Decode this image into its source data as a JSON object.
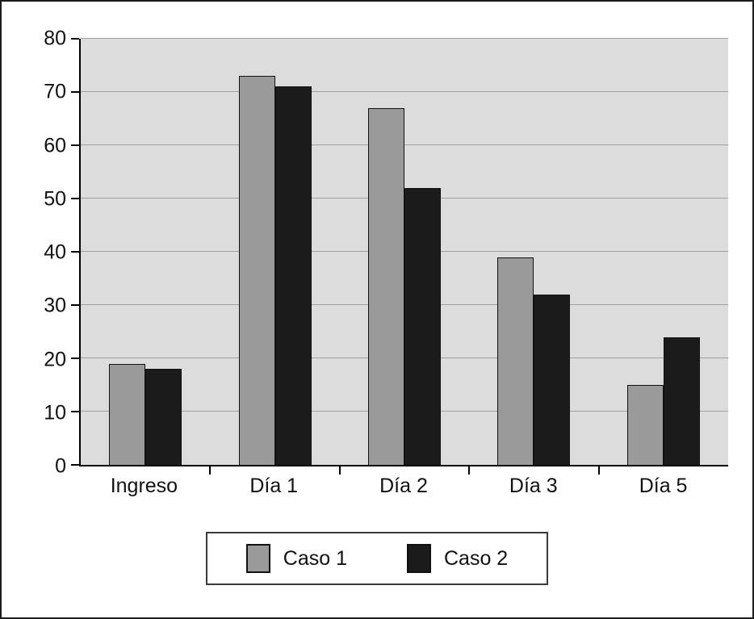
{
  "chart_data": {
    "type": "bar",
    "title": "",
    "xlabel": "",
    "ylabel": "",
    "categories": [
      "Ingreso",
      "Día 1",
      "Día 2",
      "Día 3",
      "Día 5"
    ],
    "series": [
      {
        "name": "Caso 1",
        "color": "#9a9a9a",
        "values": [
          19,
          73,
          67,
          39,
          15
        ]
      },
      {
        "name": "Caso 2",
        "color": "#1b1b1b",
        "values": [
          18,
          71,
          52,
          32,
          24
        ]
      }
    ],
    "ylim": [
      0,
      80
    ],
    "ytick_step": 10,
    "ytick_labels": [
      "0",
      "10",
      "20",
      "30",
      "40",
      "50",
      "60",
      "70",
      "80"
    ],
    "grid": true,
    "grid_color": "#a0a0a0",
    "plot_bg": "#dcdcdc",
    "legend_position": "bottom"
  },
  "legend": {
    "entry1": "Caso 1",
    "entry2": "Caso 2"
  }
}
